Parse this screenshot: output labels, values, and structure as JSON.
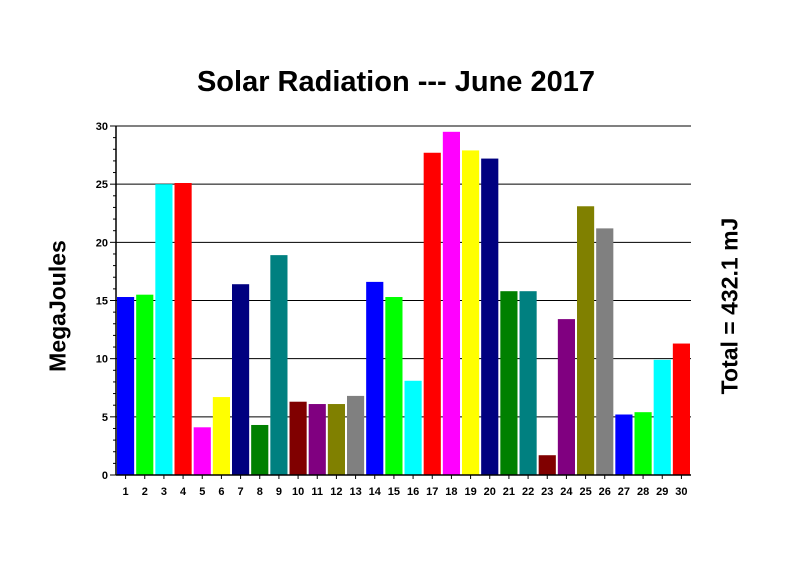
{
  "chart_data": {
    "type": "bar",
    "title": "Solar Radiation --- June 2017",
    "ylabel": "MegaJoules",
    "xlabel": "",
    "annotation": "Total = 432.1 mJ",
    "ylim": [
      0,
      30
    ],
    "yticks": [
      0,
      5,
      10,
      15,
      20,
      25,
      30
    ],
    "grid": true,
    "categories": [
      "1",
      "2",
      "3",
      "4",
      "5",
      "6",
      "7",
      "8",
      "9",
      "10",
      "11",
      "12",
      "13",
      "14",
      "15",
      "16",
      "17",
      "18",
      "19",
      "20",
      "21",
      "22",
      "23",
      "24",
      "25",
      "26",
      "27",
      "28",
      "29",
      "30"
    ],
    "values": [
      15.3,
      15.5,
      25.0,
      25.1,
      4.1,
      6.7,
      16.4,
      4.3,
      18.9,
      6.3,
      6.1,
      6.1,
      6.8,
      16.6,
      15.3,
      8.1,
      27.7,
      29.5,
      27.9,
      27.2,
      15.8,
      15.8,
      1.7,
      13.4,
      23.1,
      21.2,
      5.2,
      5.4,
      9.9,
      11.3
    ],
    "colors": [
      "#0000ff",
      "#00ff00",
      "#00ffff",
      "#ff0000",
      "#ff00ff",
      "#ffff00",
      "#000080",
      "#008000",
      "#008080",
      "#800000",
      "#800080",
      "#808000",
      "#808080",
      "#0000ff",
      "#00ff00",
      "#00ffff",
      "#ff0000",
      "#ff00ff",
      "#ffff00",
      "#000080",
      "#008000",
      "#008080",
      "#800000",
      "#800080",
      "#808000",
      "#808080",
      "#0000ff",
      "#00ff00",
      "#00ffff",
      "#ff0000"
    ]
  }
}
